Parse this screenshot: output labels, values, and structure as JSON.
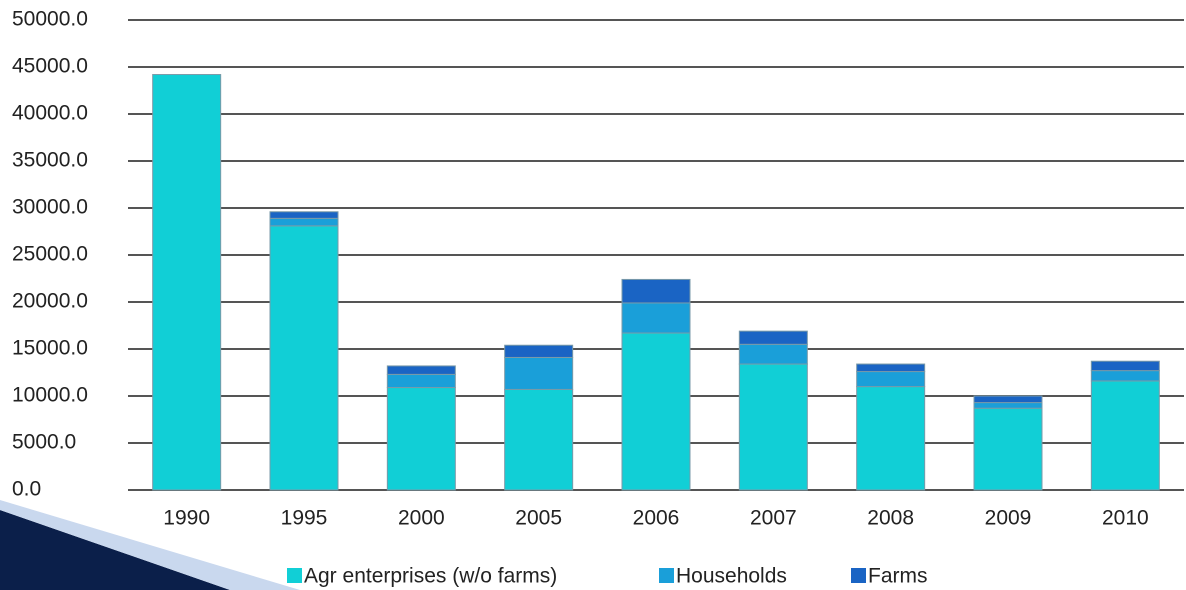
{
  "chart_data": {
    "type": "stacked_bar",
    "categories": [
      "1990",
      "1995",
      "2000",
      "2005",
      "2006",
      "2007",
      "2008",
      "2009",
      "2010"
    ],
    "series": [
      {
        "name": "Agr enterprises (w/o farms)",
        "color": "#11cfd6",
        "values": [
          44200,
          28100,
          10900,
          10700,
          16700,
          13400,
          11000,
          8700,
          11600
        ]
      },
      {
        "name": "Households",
        "color": "#1a9fd9",
        "values": [
          0,
          800,
          1400,
          3400,
          3200,
          2100,
          1600,
          600,
          1100
        ]
      },
      {
        "name": "Farms",
        "color": "#1a64c4",
        "values": [
          0,
          700,
          900,
          1300,
          2500,
          1400,
          800,
          700,
          1000
        ]
      }
    ],
    "ylim": [
      0,
      50000
    ],
    "yticks": [
      {
        "value": 0,
        "label": "0.0"
      },
      {
        "value": 5000,
        "label": "5000.0"
      },
      {
        "value": 10000,
        "label": "10000.0"
      },
      {
        "value": 15000,
        "label": "15000.0"
      },
      {
        "value": 20000,
        "label": "20000.0"
      },
      {
        "value": 25000,
        "label": "25000.0"
      },
      {
        "value": 30000,
        "label": "30000.0"
      },
      {
        "value": 35000,
        "label": "35000.0"
      },
      {
        "value": 40000,
        "label": "40000.0"
      },
      {
        "value": 45000,
        "label": "45000.0"
      },
      {
        "value": 50000,
        "label": "50000.0"
      }
    ],
    "grid": true,
    "legend": "bottom"
  }
}
